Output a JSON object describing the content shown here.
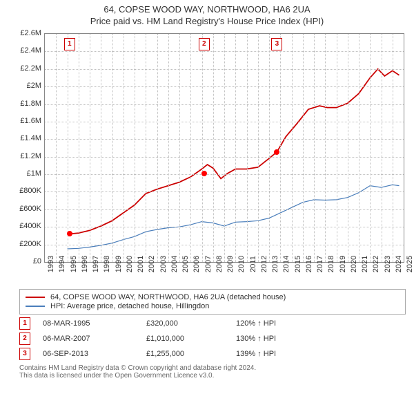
{
  "title": "64, COPSE WOOD WAY, NORTHWOOD, HA6 2UA",
  "subtitle": "Price paid vs. HM Land Registry's House Price Index (HPI)",
  "chart": {
    "type": "line",
    "xlim": [
      1993,
      2025
    ],
    "ylim": [
      0,
      2600000
    ],
    "ytick_step": 200000,
    "yticks_labels": [
      "£0",
      "£200K",
      "£400K",
      "£600K",
      "£800K",
      "£1M",
      "£1.2M",
      "£1.4M",
      "£1.6M",
      "£1.8M",
      "£2M",
      "£2.2M",
      "£2.4M",
      "£2.6M"
    ],
    "xticks": [
      1993,
      1994,
      1995,
      1996,
      1997,
      1998,
      1999,
      2000,
      2001,
      2002,
      2003,
      2004,
      2005,
      2006,
      2007,
      2008,
      2009,
      2010,
      2011,
      2012,
      2013,
      2014,
      2015,
      2016,
      2017,
      2018,
      2019,
      2020,
      2021,
      2022,
      2023,
      2024,
      2025
    ],
    "grid_color": "#bfbfbf",
    "background_color": "#ffffff",
    "series": [
      {
        "name": "property",
        "label": "64, COPSE WOOD WAY, NORTHWOOD, HA6 2UA (detached house)",
        "color": "#cc0000",
        "width": 1.8,
        "points": [
          [
            1995.2,
            320000
          ],
          [
            1996,
            330000
          ],
          [
            1997,
            360000
          ],
          [
            1998,
            410000
          ],
          [
            1999,
            470000
          ],
          [
            2000,
            560000
          ],
          [
            2001,
            650000
          ],
          [
            2002,
            780000
          ],
          [
            2003,
            830000
          ],
          [
            2004,
            870000
          ],
          [
            2005,
            910000
          ],
          [
            2006,
            970000
          ],
          [
            2007,
            1060000
          ],
          [
            2007.5,
            1110000
          ],
          [
            2008,
            1070000
          ],
          [
            2008.7,
            950000
          ],
          [
            2009.3,
            1010000
          ],
          [
            2010,
            1060000
          ],
          [
            2011,
            1060000
          ],
          [
            2012,
            1080000
          ],
          [
            2013,
            1180000
          ],
          [
            2013.7,
            1255000
          ],
          [
            2014.5,
            1430000
          ],
          [
            2015.5,
            1580000
          ],
          [
            2016.5,
            1740000
          ],
          [
            2017.5,
            1780000
          ],
          [
            2018.2,
            1760000
          ],
          [
            2019,
            1760000
          ],
          [
            2020,
            1810000
          ],
          [
            2021,
            1920000
          ],
          [
            2022,
            2100000
          ],
          [
            2022.7,
            2200000
          ],
          [
            2023.3,
            2120000
          ],
          [
            2024,
            2180000
          ],
          [
            2024.6,
            2130000
          ]
        ]
      },
      {
        "name": "hpi",
        "label": "HPI: Average price, detached house, Hillingdon",
        "color": "#4a7ebb",
        "width": 1.2,
        "points": [
          [
            1995,
            150000
          ],
          [
            1996,
            155000
          ],
          [
            1997,
            170000
          ],
          [
            1998,
            190000
          ],
          [
            1999,
            215000
          ],
          [
            2000,
            255000
          ],
          [
            2001,
            290000
          ],
          [
            2002,
            345000
          ],
          [
            2003,
            370000
          ],
          [
            2004,
            390000
          ],
          [
            2005,
            400000
          ],
          [
            2006,
            425000
          ],
          [
            2007,
            460000
          ],
          [
            2008,
            445000
          ],
          [
            2009,
            410000
          ],
          [
            2010,
            455000
          ],
          [
            2011,
            460000
          ],
          [
            2012,
            470000
          ],
          [
            2013,
            500000
          ],
          [
            2014,
            560000
          ],
          [
            2015,
            620000
          ],
          [
            2016,
            680000
          ],
          [
            2017,
            710000
          ],
          [
            2018,
            705000
          ],
          [
            2019,
            710000
          ],
          [
            2020,
            735000
          ],
          [
            2021,
            790000
          ],
          [
            2022,
            870000
          ],
          [
            2023,
            850000
          ],
          [
            2024,
            880000
          ],
          [
            2024.6,
            870000
          ]
        ]
      }
    ],
    "sale_markers": [
      {
        "n": "1",
        "x": 1995.2,
        "y": 320000
      },
      {
        "n": "2",
        "x": 2007.2,
        "y": 1010000
      },
      {
        "n": "3",
        "x": 2013.7,
        "y": 1255000
      }
    ]
  },
  "legend": [
    {
      "color": "#cc0000",
      "label": "64, COPSE WOOD WAY, NORTHWOOD, HA6 2UA (detached house)"
    },
    {
      "color": "#4a7ebb",
      "label": "HPI: Average price, detached house, Hillingdon"
    }
  ],
  "notes": [
    {
      "n": "1",
      "date": "08-MAR-1995",
      "price": "£320,000",
      "hpi": "120% ↑ HPI"
    },
    {
      "n": "2",
      "date": "06-MAR-2007",
      "price": "£1,010,000",
      "hpi": "130% ↑ HPI"
    },
    {
      "n": "3",
      "date": "06-SEP-2013",
      "price": "£1,255,000",
      "hpi": "139% ↑ HPI"
    }
  ],
  "footer_line1": "Contains HM Land Registry data © Crown copyright and database right 2024.",
  "footer_line2": "This data is licensed under the Open Government Licence v3.0."
}
